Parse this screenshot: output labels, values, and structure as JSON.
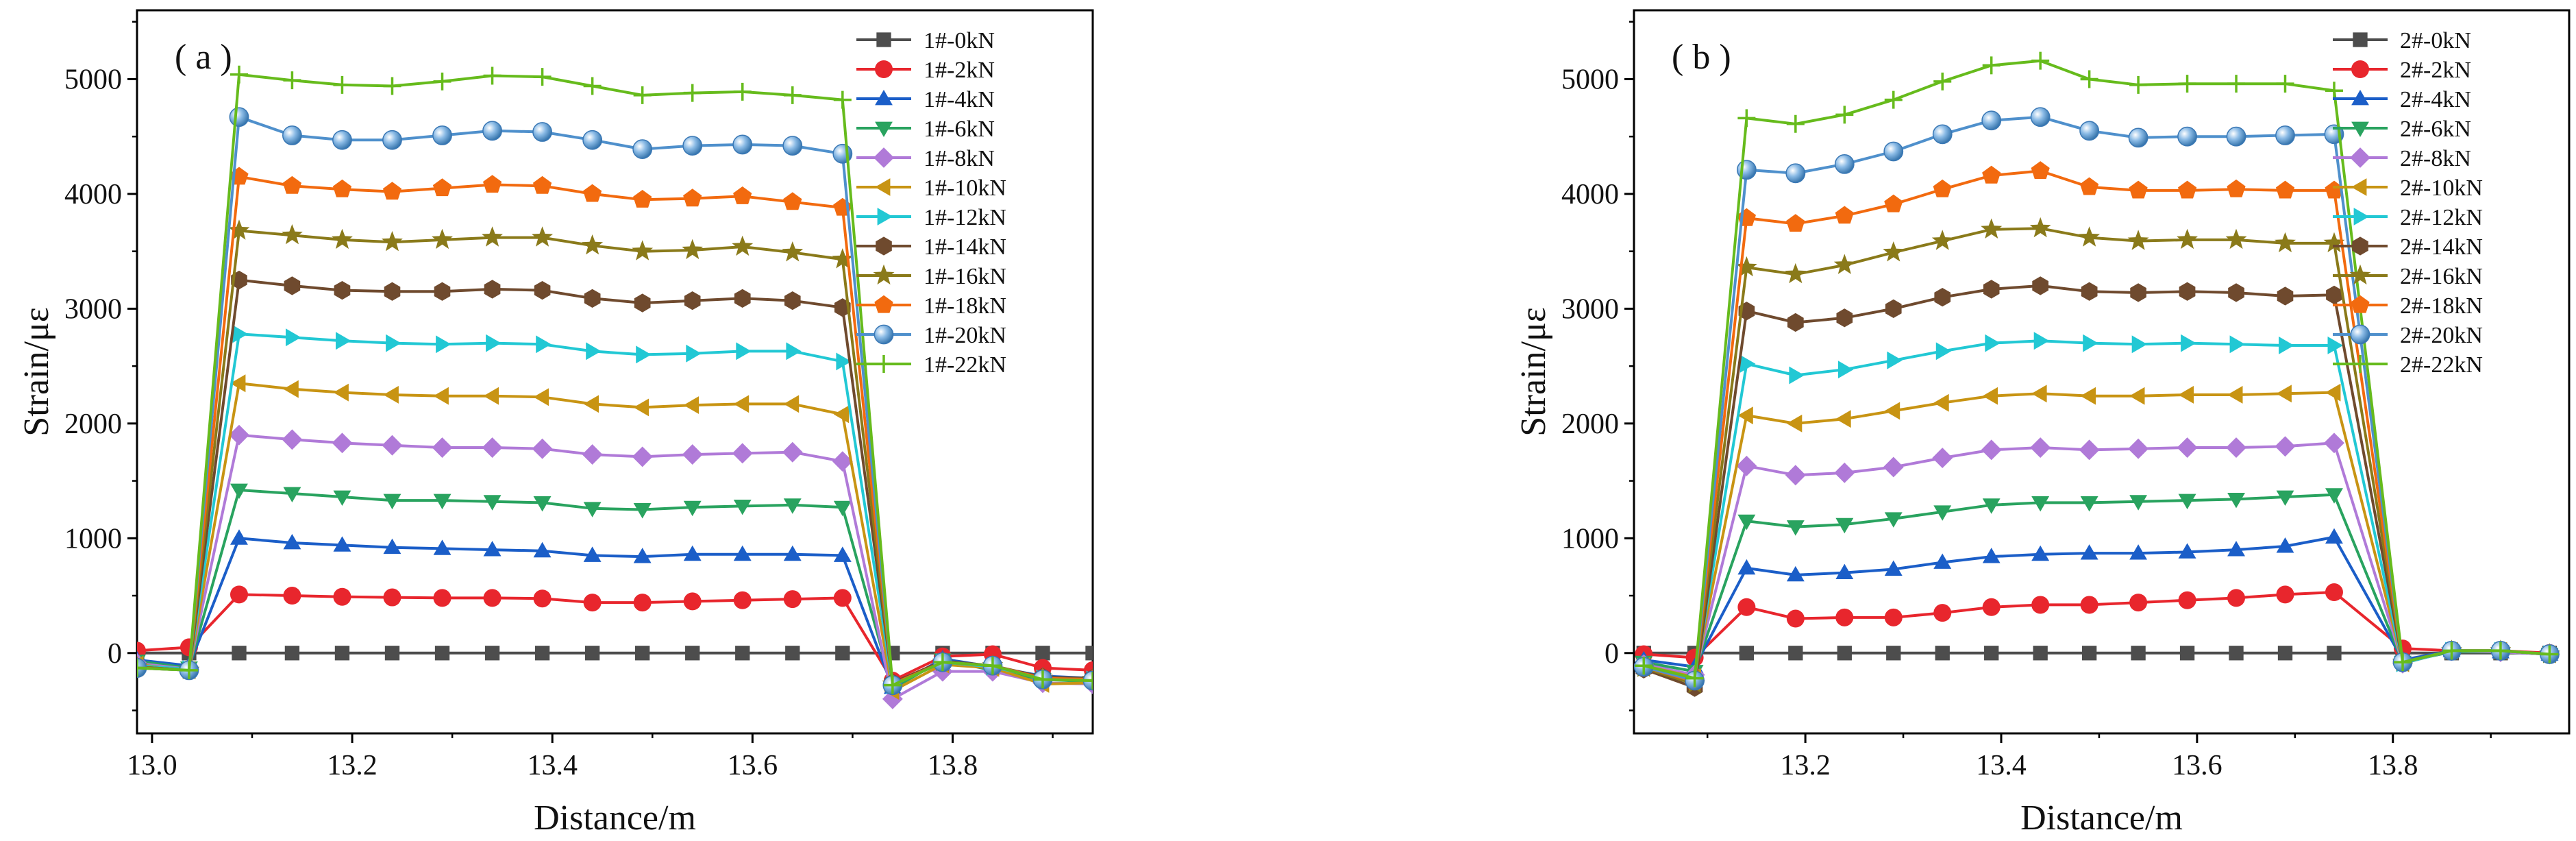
{
  "chart_data": [
    {
      "type": "line",
      "panel_label": "( a )",
      "xlabel": "Distance/m",
      "ylabel": "Strain/με",
      "xlim": [
        12.985,
        13.94
      ],
      "ylim": [
        -700,
        5600
      ],
      "xticks": [
        {
          "value": 13.0,
          "label": "13.0"
        },
        {
          "value": 13.2,
          "label": "13.2"
        },
        {
          "value": 13.4,
          "label": "13.4"
        },
        {
          "value": 13.6,
          "label": "13.6"
        },
        {
          "value": 13.8,
          "label": "13.8"
        }
      ],
      "yticks": [
        {
          "value": 0,
          "label": "0"
        },
        {
          "value": 1000,
          "label": "1000"
        },
        {
          "value": 2000,
          "label": "2000"
        },
        {
          "value": 3000,
          "label": "3000"
        },
        {
          "value": 4000,
          "label": "4000"
        },
        {
          "value": 5000,
          "label": "5000"
        }
      ],
      "legend_position": "top-right",
      "x": [
        12.985,
        13.037,
        13.087,
        13.14,
        13.19,
        13.24,
        13.29,
        13.34,
        13.39,
        13.44,
        13.49,
        13.54,
        13.59,
        13.64,
        13.69,
        13.74,
        13.79,
        13.84,
        13.89,
        13.94
      ],
      "series": [
        {
          "name": "1#-0kN",
          "color": "#4d4d4d",
          "marker": "square",
          "values": [
            0,
            0,
            0,
            0,
            0,
            0,
            0,
            0,
            0,
            0,
            0,
            0,
            0,
            0,
            0,
            0,
            0,
            0,
            0,
            0
          ]
        },
        {
          "name": "1#-2kN",
          "color": "#e8262d",
          "marker": "circle",
          "values": [
            20,
            50,
            510,
            500,
            490,
            485,
            480,
            480,
            475,
            440,
            440,
            450,
            460,
            470,
            480,
            -240,
            -30,
            -10,
            -130,
            -150
          ]
        },
        {
          "name": "1#-4kN",
          "color": "#1b5ec8",
          "marker": "triangle-up",
          "values": [
            -60,
            -110,
            1000,
            960,
            940,
            920,
            910,
            900,
            890,
            850,
            840,
            860,
            860,
            860,
            850,
            -300,
            -50,
            -120,
            -200,
            -220
          ]
        },
        {
          "name": "1#-6kN",
          "color": "#29a35f",
          "marker": "triangle-down",
          "values": [
            -70,
            -130,
            1420,
            1390,
            1360,
            1330,
            1330,
            1320,
            1310,
            1260,
            1250,
            1270,
            1280,
            1290,
            1270,
            -310,
            -60,
            -150,
            -230,
            -250
          ]
        },
        {
          "name": "1#-8kN",
          "color": "#b07ad8",
          "marker": "diamond",
          "values": [
            -90,
            -140,
            1900,
            1860,
            1830,
            1810,
            1790,
            1790,
            1780,
            1730,
            1710,
            1730,
            1740,
            1750,
            1670,
            -400,
            -160,
            -160,
            -260,
            -270
          ]
        },
        {
          "name": "1#-10kN",
          "color": "#c89413",
          "marker": "triangle-left",
          "values": [
            -100,
            -150,
            2350,
            2300,
            2270,
            2250,
            2240,
            2240,
            2230,
            2170,
            2140,
            2160,
            2170,
            2170,
            2080,
            -330,
            -100,
            -130,
            -270,
            -260
          ]
        },
        {
          "name": "1#-12kN",
          "color": "#22c8d4",
          "marker": "triangle-right",
          "values": [
            -110,
            -140,
            2780,
            2750,
            2720,
            2700,
            2690,
            2700,
            2690,
            2630,
            2600,
            2610,
            2630,
            2630,
            2540,
            -280,
            -80,
            -120,
            -220,
            -230
          ]
        },
        {
          "name": "1#-14kN",
          "color": "#6f4a2e",
          "marker": "hexagon",
          "values": [
            -120,
            -150,
            3250,
            3200,
            3160,
            3150,
            3150,
            3170,
            3160,
            3090,
            3050,
            3070,
            3090,
            3070,
            3010,
            -260,
            -70,
            -110,
            -210,
            -220
          ]
        },
        {
          "name": "1#-16kN",
          "color": "#8a7a1a",
          "marker": "star",
          "values": [
            -120,
            -150,
            3680,
            3640,
            3600,
            3580,
            3600,
            3620,
            3620,
            3550,
            3500,
            3510,
            3540,
            3490,
            3430,
            -270,
            -80,
            -110,
            -220,
            -230
          ]
        },
        {
          "name": "1#-18kN",
          "color": "#f26a0f",
          "marker": "pentagon",
          "values": [
            -130,
            -150,
            4150,
            4070,
            4040,
            4020,
            4050,
            4080,
            4070,
            4000,
            3950,
            3960,
            3980,
            3930,
            3880,
            -270,
            -80,
            -110,
            -220,
            -230
          ]
        },
        {
          "name": "1#-20kN",
          "color": "#4f90cc",
          "marker": "sphere",
          "values": [
            -130,
            -150,
            4670,
            4510,
            4470,
            4470,
            4510,
            4550,
            4540,
            4470,
            4390,
            4420,
            4430,
            4420,
            4350,
            -280,
            -80,
            -110,
            -230,
            -240
          ]
        },
        {
          "name": "1#-22kN",
          "color": "#66bb1c",
          "marker": "plus",
          "values": [
            -130,
            -150,
            5040,
            4990,
            4950,
            4940,
            4980,
            5030,
            5020,
            4940,
            4860,
            4880,
            4890,
            4860,
            4820,
            -280,
            -80,
            -110,
            -230,
            -240
          ]
        }
      ]
    },
    {
      "type": "line",
      "panel_label": "( b )",
      "xlabel": "Distance/m",
      "ylabel": "Strain/με",
      "xlim": [
        13.025,
        13.98
      ],
      "ylim": [
        -700,
        5600
      ],
      "xticks": [
        {
          "value": 13.2,
          "label": "13.2"
        },
        {
          "value": 13.4,
          "label": "13.4"
        },
        {
          "value": 13.6,
          "label": "13.6"
        },
        {
          "value": 13.8,
          "label": "13.8"
        }
      ],
      "yticks": [
        {
          "value": 0,
          "label": "0"
        },
        {
          "value": 1000,
          "label": "1000"
        },
        {
          "value": 2000,
          "label": "2000"
        },
        {
          "value": 3000,
          "label": "3000"
        },
        {
          "value": 4000,
          "label": "4000"
        },
        {
          "value": 5000,
          "label": "5000"
        }
      ],
      "legend_position": "top-right",
      "x": [
        13.035,
        13.087,
        13.14,
        13.19,
        13.24,
        13.29,
        13.34,
        13.39,
        13.44,
        13.49,
        13.54,
        13.59,
        13.64,
        13.69,
        13.74,
        13.81,
        13.86,
        13.91,
        13.96
      ],
      "series": [
        {
          "name": "2#-0kN",
          "color": "#4d4d4d",
          "marker": "square",
          "values": [
            0,
            0,
            0,
            0,
            0,
            0,
            0,
            0,
            0,
            0,
            0,
            0,
            0,
            0,
            0,
            0,
            0,
            0,
            0
          ]
        },
        {
          "name": "2#-2kN",
          "color": "#e8262d",
          "marker": "circle",
          "values": [
            -10,
            -40,
            400,
            300,
            310,
            310,
            350,
            400,
            420,
            420,
            440,
            460,
            480,
            510,
            530,
            40,
            20,
            20,
            0
          ]
        },
        {
          "name": "2#-4kN",
          "color": "#1b5ec8",
          "marker": "triangle-up",
          "values": [
            -60,
            -120,
            740,
            680,
            700,
            730,
            790,
            840,
            860,
            870,
            870,
            880,
            900,
            930,
            1010,
            -60,
            20,
            10,
            -10
          ]
        },
        {
          "name": "2#-6kN",
          "color": "#29a35f",
          "marker": "triangle-down",
          "values": [
            -80,
            -160,
            1150,
            1100,
            1120,
            1170,
            1230,
            1290,
            1310,
            1310,
            1320,
            1330,
            1340,
            1360,
            1380,
            -80,
            10,
            10,
            -10
          ]
        },
        {
          "name": "2#-8kN",
          "color": "#b07ad8",
          "marker": "diamond",
          "values": [
            -100,
            -190,
            1630,
            1550,
            1570,
            1620,
            1700,
            1770,
            1790,
            1770,
            1780,
            1790,
            1790,
            1800,
            1830,
            -90,
            20,
            10,
            -10
          ]
        },
        {
          "name": "2#-10kN",
          "color": "#c89413",
          "marker": "triangle-left",
          "values": [
            -110,
            -210,
            2070,
            2000,
            2040,
            2110,
            2180,
            2240,
            2260,
            2240,
            2240,
            2250,
            2250,
            2260,
            2270,
            -90,
            20,
            20,
            -10
          ]
        },
        {
          "name": "2#-12kN",
          "color": "#22c8d4",
          "marker": "triangle-right",
          "values": [
            -120,
            -240,
            2520,
            2420,
            2470,
            2550,
            2630,
            2700,
            2720,
            2700,
            2690,
            2700,
            2690,
            2680,
            2680,
            -90,
            20,
            20,
            -10
          ]
        },
        {
          "name": "2#-14kN",
          "color": "#6f4a2e",
          "marker": "hexagon",
          "values": [
            -140,
            -300,
            2980,
            2880,
            2920,
            3000,
            3100,
            3170,
            3200,
            3150,
            3140,
            3150,
            3140,
            3110,
            3120,
            -80,
            20,
            20,
            -10
          ]
        },
        {
          "name": "2#-16kN",
          "color": "#8a7a1a",
          "marker": "star",
          "values": [
            -130,
            -270,
            3360,
            3300,
            3380,
            3490,
            3590,
            3690,
            3700,
            3620,
            3590,
            3600,
            3600,
            3570,
            3570,
            -80,
            20,
            20,
            -10
          ]
        },
        {
          "name": "2#-18kN",
          "color": "#f26a0f",
          "marker": "pentagon",
          "values": [
            -120,
            -250,
            3790,
            3740,
            3810,
            3910,
            4040,
            4160,
            4200,
            4060,
            4030,
            4030,
            4040,
            4030,
            4030,
            -80,
            20,
            20,
            -10
          ]
        },
        {
          "name": "2#-20kN",
          "color": "#4f90cc",
          "marker": "sphere",
          "values": [
            -120,
            -240,
            4210,
            4180,
            4260,
            4370,
            4520,
            4640,
            4670,
            4550,
            4490,
            4500,
            4500,
            4510,
            4520,
            -80,
            20,
            20,
            -10
          ]
        },
        {
          "name": "2#-22kN",
          "color": "#66bb1c",
          "marker": "plus",
          "values": [
            -110,
            -220,
            4660,
            4610,
            4690,
            4820,
            4980,
            5120,
            5160,
            5000,
            4950,
            4960,
            4960,
            4960,
            4900,
            -80,
            20,
            20,
            -10
          ]
        }
      ]
    }
  ]
}
